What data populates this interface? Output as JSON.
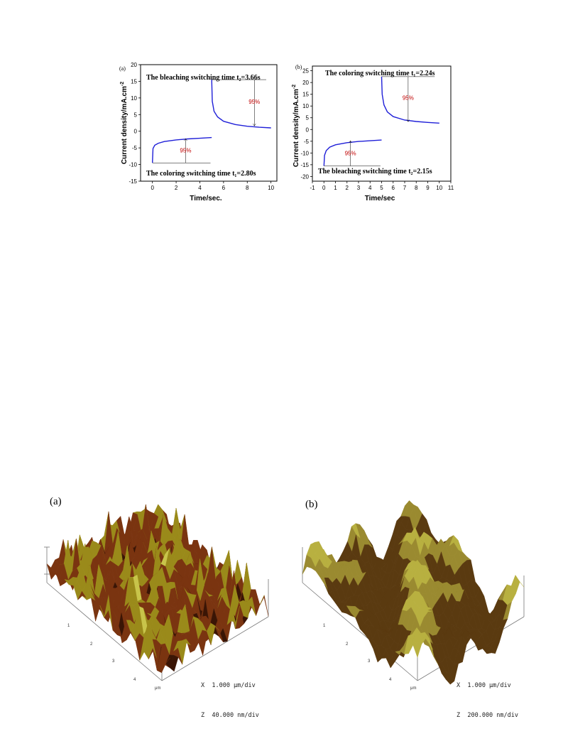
{
  "figure1": {
    "panel_a": {
      "tag": "(a)",
      "top_annotation": "The bleaching switching time t₂=3.66s",
      "bottom_annotation": "The coloring switching time t₁=2.80s",
      "percent_upper": "95%",
      "percent_lower": "95%"
    },
    "panel_b": {
      "tag": "(b)",
      "top_annotation": "The coloring switching time t₁=2.24s",
      "bottom_annotation": "The bleaching switching time t₂=2.15s",
      "percent_upper": "95%",
      "percent_lower": "95%"
    }
  },
  "chart_data": [
    {
      "type": "line",
      "panel": "(a)",
      "xlabel": "Time/sec.",
      "ylabel": "Current density/mA.cm⁻²",
      "xlim": [
        -1,
        10.5
      ],
      "ylim": [
        -15,
        20
      ],
      "xticks": [
        0,
        2,
        4,
        6,
        8,
        10
      ],
      "yticks": [
        -15,
        -10,
        -5,
        0,
        5,
        10,
        15,
        20
      ],
      "grid": false,
      "line_color": "#1f1fd8",
      "series": [
        {
          "x": [
            0,
            0.05,
            0.2,
            0.5,
            1,
            2,
            3,
            4,
            5
          ],
          "y": [
            -9.5,
            -5.2,
            -4.2,
            -3.6,
            -3.1,
            -2.6,
            -2.3,
            -2.1,
            -1.9
          ]
        },
        {
          "x": [
            5,
            5.05,
            5.2,
            5.5,
            6,
            7,
            8,
            9,
            10
          ],
          "y": [
            15.5,
            9.0,
            6.0,
            4.3,
            3.0,
            2.0,
            1.5,
            1.2,
            1.0
          ]
        }
      ],
      "annotations": [
        "The bleaching switching time t₂=3.66s",
        "The coloring switching time t₁=2.80s",
        "95%",
        "95%"
      ]
    },
    {
      "type": "line",
      "panel": "(b)",
      "xlabel": "Time/sec",
      "ylabel": "Current density/mA.cm⁻²",
      "xlim": [
        -1,
        11
      ],
      "ylim": [
        -22,
        27
      ],
      "xticks": [
        -1,
        0,
        1,
        2,
        3,
        4,
        5,
        6,
        7,
        8,
        9,
        10,
        11
      ],
      "yticks": [
        -20,
        -15,
        -10,
        -5,
        0,
        5,
        10,
        15,
        20,
        25
      ],
      "grid": false,
      "line_color": "#1f1fd8",
      "series": [
        {
          "x": [
            0,
            0.05,
            0.2,
            0.5,
            1,
            2,
            3,
            4,
            5
          ],
          "y": [
            -15.5,
            -11.0,
            -9.0,
            -7.5,
            -6.5,
            -5.6,
            -5.1,
            -4.8,
            -4.5
          ]
        },
        {
          "x": [
            5,
            5.05,
            5.2,
            5.5,
            6,
            7,
            8,
            9,
            10
          ],
          "y": [
            22.5,
            15.0,
            10.5,
            7.5,
            5.5,
            4.0,
            3.4,
            3.0,
            2.7
          ]
        }
      ],
      "annotations": [
        "The coloring switching time t₁=2.24s",
        "The bleaching switching time t₂=2.15s",
        "95%",
        "95%"
      ]
    }
  ],
  "figure2": {
    "panel_a": {
      "tag": "(a)",
      "axis_ticks": [
        "1",
        "2",
        "3",
        "4"
      ],
      "axis_unit": "μm",
      "scale_x": "X  1.000 μm/div",
      "scale_z": "Z  40.000 nm/div",
      "colors": {
        "low": "#3a1505",
        "mid": "#7a3410",
        "high": "#9a8a1a",
        "peak": "#c8c44a"
      }
    },
    "panel_b": {
      "tag": "(b)",
      "axis_ticks": [
        "1",
        "2",
        "3",
        "4"
      ],
      "axis_unit": "μm",
      "scale_x": "X  1.000 μm/div",
      "scale_z": "Z  200.000 nm/div",
      "colors": {
        "low": "#5a3a10",
        "mid": "#9a8a30",
        "high": "#b8b040",
        "peak": "#c8a8c8"
      }
    }
  }
}
